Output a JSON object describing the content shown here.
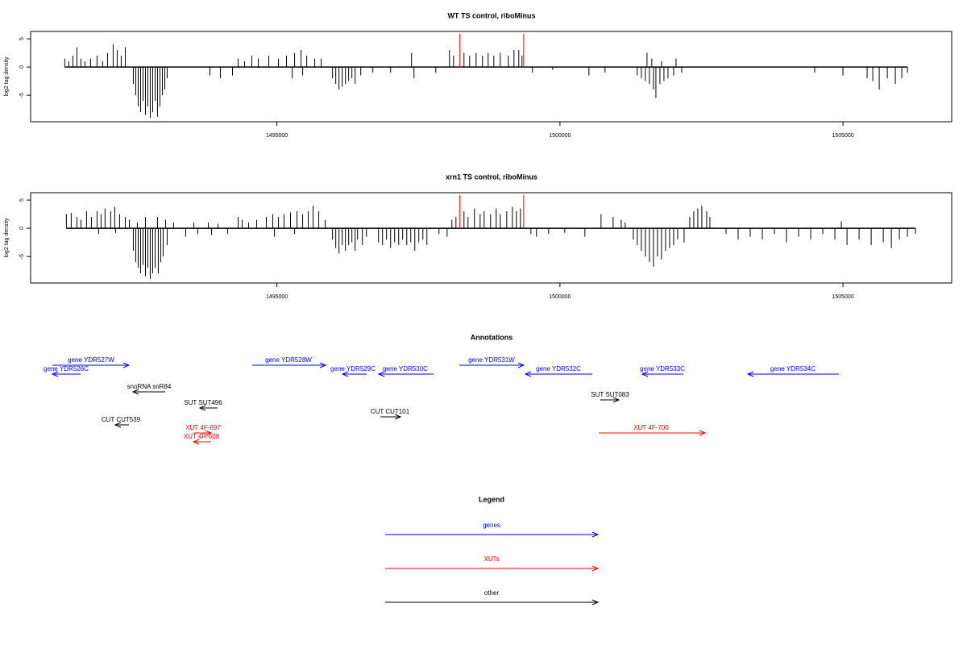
{
  "chart_data": [
    {
      "type": "bar",
      "title": "WT TS control, riboMinus",
      "y_label": "log2 tag density",
      "xlim": [
        1490650,
        1506920
      ],
      "ylim": [
        -9.7,
        6.3
      ],
      "xticks": [
        1495000,
        1500000,
        1505000
      ],
      "yticks": [
        -5,
        0,
        5
      ],
      "series": [
        {
          "color": "#000000",
          "x": [
            1491253,
            1491325,
            1491396,
            1491467,
            1491538,
            1491610,
            1491709,
            1491823,
            1491923,
            1492008,
            1492108,
            1492179,
            1492250,
            1492322,
            1492464,
            1492507,
            1492550,
            1492592,
            1492635,
            1492678,
            1492720,
            1492763,
            1492806,
            1492849,
            1492891,
            1492934,
            1492977,
            1493020,
            1493062,
            1493817,
            1494003,
            1494216,
            1494316,
            1494430,
            1494558,
            1494672,
            1494857,
            1495028,
            1495170,
            1495313,
            1495427,
            1495527,
            1495669,
            1495783,
            1495270,
            1495455,
            1495983,
            1496040,
            1496097,
            1496154,
            1496211,
            1496268,
            1496325,
            1496382,
            1496482,
            1496695,
            1497009,
            1497379,
            1497422,
            1497807,
            1498049,
            1498120,
            1498305,
            1498405,
            1498519,
            1498632,
            1498732,
            1498832,
            1498946,
            1499088,
            1499188,
            1499273,
            1499330,
            1499515,
            1499871,
            1500512,
            1500797,
            1501367,
            1501438,
            1501509,
            1501581,
            1501652,
            1501695,
            1501766,
            1501837,
            1501908,
            1502008,
            1502150,
            1501538,
            1501623,
            1501794,
            1502051,
            1504500,
            1504999,
            1505426,
            1505526,
            1505640,
            1505783,
            1505925,
            1506039,
            1506139
          ],
          "values": [
            1.5,
            1,
            2,
            3.5,
            1.5,
            1,
            1.5,
            2,
            1,
            2.5,
            4,
            3,
            2,
            3.5,
            -3,
            -5,
            -7,
            -8,
            -6,
            -8.5,
            -7,
            -9,
            -8,
            -6,
            -8.8,
            -7,
            -5,
            -4,
            -2,
            -1.5,
            -2,
            -1.5,
            1.5,
            1,
            2,
            1.5,
            2,
            1.5,
            2,
            2.5,
            3,
            2,
            1.5,
            1.5,
            -2,
            -1.5,
            -2,
            -3,
            -4,
            -3.5,
            -3,
            -2.5,
            -2,
            -3,
            -1.5,
            -1,
            -1,
            2.5,
            -2,
            -1,
            3,
            2,
            2.5,
            2,
            2.5,
            2,
            2.5,
            2,
            2.5,
            2,
            3,
            3,
            2,
            -1,
            -0.5,
            -1.5,
            -1,
            -1.5,
            -2,
            -2.5,
            -3,
            -4,
            -5.5,
            -3,
            -2.5,
            -2,
            -1.5,
            -1,
            2.5,
            1.5,
            1,
            1.5,
            -1,
            -1.5,
            -2,
            -2.5,
            -4,
            -2,
            -3,
            -2,
            -1
          ]
        },
        {
          "color": "#ff0000",
          "x": [
            1498233,
            1499359
          ],
          "values": [
            5.9,
            5.9
          ]
        }
      ]
    },
    {
      "type": "bar",
      "title": "xrn1 TS control, riboMinus",
      "y_label": "log2 tag density",
      "xlim": [
        1490650,
        1506920
      ],
      "ylim": [
        -9.7,
        6.3
      ],
      "xticks": [
        1495000,
        1500000,
        1505000
      ],
      "yticks": [
        -5,
        0,
        5
      ],
      "series": [
        {
          "color": "#000000",
          "x": [
            1491282,
            1491367,
            1491467,
            1491538,
            1491638,
            1491723,
            1491823,
            1491894,
            1491965,
            1492065,
            1492136,
            1492222,
            1492322,
            1492393,
            1492535,
            1492678,
            1492891,
            1493034,
            1493176,
            1493532,
            1493789,
            1493960,
            1491852,
            1492151,
            1492464,
            1492507,
            1492550,
            1492592,
            1492635,
            1492678,
            1492720,
            1492763,
            1492806,
            1492849,
            1492905,
            1492948,
            1492991,
            1493062,
            1493390,
            1493604,
            1493846,
            1494131,
            1494316,
            1494387,
            1494501,
            1494643,
            1494814,
            1494928,
            1495028,
            1495127,
            1495241,
            1495355,
            1495455,
            1495555,
            1495640,
            1495740,
            1495854,
            1494957,
            1495313,
            1495983,
            1496040,
            1496097,
            1496154,
            1496211,
            1496268,
            1496325,
            1496382,
            1496425,
            1496510,
            1496582,
            1496795,
            1496866,
            1496937,
            1497009,
            1497080,
            1497151,
            1497222,
            1497294,
            1497365,
            1497436,
            1497507,
            1497579,
            1497650,
            1497864,
            1498007,
            1498091,
            1498163,
            1498305,
            1498376,
            1498490,
            1498590,
            1498661,
            1498775,
            1498874,
            1498946,
            1499060,
            1499160,
            1499231,
            1499302,
            1499487,
            1499586,
            1499800,
            1500085,
            1500441,
            1500726,
            1500939,
            1501082,
            1501296,
            1501367,
            1501438,
            1501509,
            1501581,
            1501652,
            1501723,
            1501794,
            1501866,
            1501937,
            1502008,
            1502079,
            1502193,
            1501153,
            1502293,
            1502364,
            1502435,
            1502506,
            1502592,
            1502649,
            1502934,
            1503148,
            1503361,
            1503575,
            1503789,
            1504002,
            1504216,
            1504430,
            1504643,
            1504857,
            1505071,
            1505284,
            1505498,
            1505712,
            1505854,
            1505996,
            1506139,
            1506281,
            1504971
          ],
          "values": [
            2.5,
            2.7,
            2,
            1.5,
            3,
            2,
            3,
            2.5,
            3.5,
            3,
            3.8,
            2.5,
            2,
            1.5,
            1,
            2,
            2,
            1.5,
            1,
            1,
            1,
            0.8,
            -1,
            -0.8,
            -4,
            -6,
            -7,
            -8,
            -6.5,
            -8.5,
            -7,
            -9,
            -8,
            -7,
            -8,
            -6,
            -5,
            -3,
            -1.5,
            -1,
            -1.2,
            -1,
            2,
            1.5,
            1,
            1.5,
            2,
            2.5,
            2,
            2.5,
            2.8,
            3,
            2.5,
            3,
            4,
            3,
            1.5,
            -1.5,
            -1,
            -2,
            -3.5,
            -4.5,
            -3,
            -4,
            -3,
            -2.5,
            -4,
            -2,
            -3,
            -1.5,
            -2.5,
            -3,
            -2,
            -3.5,
            -2.5,
            -3,
            -2,
            -3,
            -2.5,
            -4,
            -2.5,
            -2,
            -3,
            -1,
            -1.5,
            1.5,
            2,
            3,
            2,
            3.5,
            2.5,
            3,
            2.5,
            3.5,
            2.5,
            3,
            3.8,
            3,
            3.5,
            -1,
            -1.5,
            -1,
            -0.8,
            -1.5,
            2.5,
            2,
            1.5,
            -2,
            -3,
            -4,
            -5,
            -6,
            -6.8,
            -5,
            -5.5,
            -4,
            -3.5,
            -3,
            -2,
            -2.5,
            1,
            2,
            3,
            3.5,
            4,
            3,
            2,
            -1,
            -2,
            -1.5,
            -2,
            -1,
            -2.5,
            -1.5,
            -2,
            -1,
            -2,
            -3,
            -2,
            -3,
            -2.5,
            -3.5,
            -2,
            -1.5,
            -1,
            1.2
          ]
        },
        {
          "color": "#ff0000",
          "x": [
            1498233,
            1499359
          ],
          "values": [
            5.9,
            5.9
          ]
        }
      ]
    }
  ],
  "annotations": {
    "title": "Annotations",
    "features": [
      {
        "label": "gene YDR527W",
        "color": "#0000ff"
      },
      {
        "label": "gene YDR526C",
        "color": "#0000ff"
      },
      {
        "label": "gene YDR528W",
        "color": "#0000ff"
      },
      {
        "label": "gene YDR529C",
        "color": "#0000ff"
      },
      {
        "label": "gene YDR530C",
        "color": "#0000ff"
      },
      {
        "label": "gene YDR531W",
        "color": "#0000ff"
      },
      {
        "label": "gene YDR532C",
        "color": "#0000ff"
      },
      {
        "label": "gene YDR533C",
        "color": "#0000ff"
      },
      {
        "label": "gene YDR534C",
        "color": "#0000ff"
      },
      {
        "label": "snoRNA snR84",
        "color": "#000000"
      },
      {
        "label": "SUT SUT496",
        "color": "#000000"
      },
      {
        "label": "SUT SUT083",
        "color": "#000000"
      },
      {
        "label": "CUT CUT539",
        "color": "#000000"
      },
      {
        "label": "CUT CUT101",
        "color": "#000000"
      },
      {
        "label": "XUT 4F-697",
        "color": "#ff0000"
      },
      {
        "label": "XUT 4R-608",
        "color": "#ff0000"
      },
      {
        "label": "XUT 4F-700",
        "color": "#ff0000"
      }
    ]
  },
  "legend": {
    "title": "Legend",
    "entries": [
      {
        "label": "genes",
        "color": "#0000ff"
      },
      {
        "label": "XUTs",
        "color": "#ff0000"
      },
      {
        "label": "other",
        "color": "#000000"
      }
    ]
  }
}
